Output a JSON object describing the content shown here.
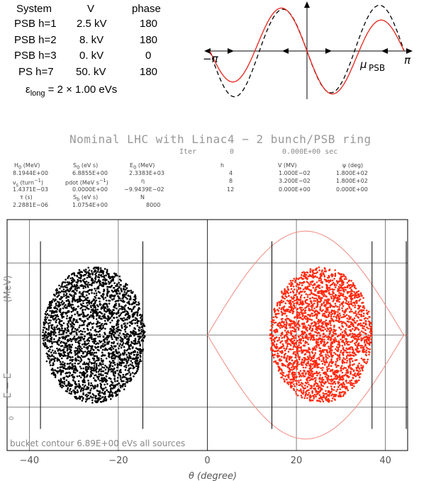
{
  "table": {
    "headers": [
      "System",
      "V",
      "phase"
    ],
    "rows": [
      [
        "PSB h=1",
        "2.5 kV",
        "180"
      ],
      [
        "PSB h=2",
        "8. kV",
        "180"
      ],
      [
        "PSB h=3",
        "0. kV",
        "0"
      ],
      [
        "PS h=7",
        "50. kV",
        "180"
      ]
    ],
    "eps_label": "ε",
    "eps_sub": "long",
    "eps_value": "= 2 × 1.00 eVs"
  },
  "waveform": {
    "label_minus_pi": "−π",
    "label_pi": "π",
    "label_mu": "μ",
    "label_mu_sub": "PSB",
    "colors": {
      "solid": "#e8231b",
      "dashed": "#000000"
    }
  },
  "title": "Nominal LHC with Linac4 − 2 bunch/PSB ring",
  "iter": {
    "label": "Iter",
    "value": "0",
    "time": "0.000E+00 sec"
  },
  "params": {
    "c1": {
      "h1": "H",
      "h1_sub": "0",
      "h1_unit": " (MeV)",
      "v1": "8.1944E+00",
      "h2": "ν",
      "h2_sub": "s",
      "h2_unit": " (turn",
      "h2_sup": "−1",
      "h2_end": ")",
      "v2": "1.4371E−03",
      "h3": "τ (s)",
      "v3": "2.2881E−06"
    },
    "c2": {
      "h1": "S",
      "h1_sub": "0",
      "h1_unit": " (eV s)",
      "v1": "6.8855E+00",
      "h2": "pdot (MeV s",
      "h2_sup": "−1",
      "h2_end": ")",
      "v2": "0.0000E+00",
      "h3": "S",
      "h3_sub": "b",
      "h3_unit": " (eV s)",
      "v3": "1.0754E+00"
    },
    "c3": {
      "h1": "E",
      "h1_sub": "0",
      "h1_unit": " (MeV)",
      "v1": "2.3383E+03",
      "h2": "η",
      "v2": "−9.9439E−02",
      "h3": "N",
      "v3": "8000"
    },
    "c4": {
      "h": "h",
      "rows": [
        "4",
        "8",
        "12"
      ]
    },
    "c5": {
      "h": "V (MV)",
      "rows": [
        "1.000E−02",
        "3.200E−02",
        "0.000E+00"
      ]
    },
    "c6": {
      "h": "ψ (deg)",
      "rows": [
        "1.800E+02",
        "1.800E+02",
        "0.000E+00"
      ]
    }
  },
  "plot": {
    "ylabel_main": "E − E",
    "ylabel_sub": "0",
    "ylabel_unit": "(MeV)",
    "xlabel": "θ (degree)",
    "footer_note": "bucket contour 6.89E+00 eVs all sources",
    "colors": {
      "left_particles": "#000000",
      "right_particles": "#ff2a10",
      "separatrix": "#f08a80",
      "grid": "#000000"
    }
  },
  "chart_data": {
    "type": "scatter",
    "xlabel": "θ (degree)",
    "ylabel": "E − E0 (MeV)",
    "xlim": [
      -45,
      45
    ],
    "ylim": [
      -8,
      8
    ],
    "x_ticks": [
      -40,
      -20,
      0,
      20,
      40
    ],
    "y_ticks": [
      -5,
      0,
      5
    ],
    "grid": true,
    "panels": [
      {
        "name": "left",
        "center_x": -25.5,
        "half_width_x": 11.5,
        "half_height_y": 4.7,
        "n_points": 2600
      },
      {
        "name": "right",
        "center_x": 25.5,
        "half_width_x": 11.5,
        "half_height_y": 4.7,
        "n_points": 2600
      }
    ],
    "vertical_markers_left": [
      -37.5,
      -14.5
    ],
    "vertical_markers_right": [
      14.5,
      37,
      45
    ],
    "separatrix_right": {
      "bucket_start_x": 0,
      "max_half_height": 7.2
    }
  }
}
